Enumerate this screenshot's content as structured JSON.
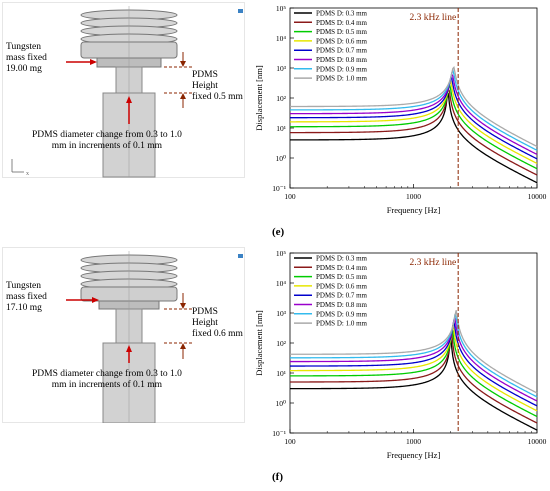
{
  "panels": [
    {
      "id": "e",
      "letter": "(e)",
      "cad": {
        "tungsten_label": "Tungsten\nmass fixed\n19.00 mg",
        "pdms_height_label": "PDMS Height\nfixed 0.5 mm",
        "diameter_label": "PDMS diameter change from 0.3 to 1.0\nmm in increments of 0.1 mm"
      }
    },
    {
      "id": "f",
      "letter": "(f)",
      "cad": {
        "tungsten_label": "Tungsten\nmass fixed\n17.10 mg",
        "pdms_height_label": "PDMS Height\nfixed 0.6 mm",
        "diameter_label": "PDMS diameter change from 0.3 to 1.0\nmm in increments of 0.1 mm"
      }
    }
  ],
  "colors": {
    "series": [
      "#000000",
      "#8b1a1a",
      "#00cc00",
      "#e6e600",
      "#0000cc",
      "#9900cc",
      "#33bbee",
      "#aaaaaa"
    ],
    "marker_line": "#8b2500",
    "cad_body": "#c8c8c8",
    "arrow": "#cc0000"
  },
  "chart_data": [
    {
      "type": "line",
      "panel": "e",
      "xlabel": "Frequency [Hz]",
      "ylabel": "Displacement [nm]",
      "x_scale": "log",
      "y_scale": "log",
      "xlim": [
        100,
        10000
      ],
      "ylim_exp": [
        -1,
        5
      ],
      "x_ticks": [
        "100",
        "1000",
        "10000"
      ],
      "y_ticks": [
        "10⁻¹",
        "10⁰",
        "10¹",
        "10²",
        "10³",
        "10⁴",
        "10⁵"
      ],
      "marker": {
        "x": 2300,
        "label": "2.3 kHz line"
      },
      "legend_position": "top-left",
      "series": [
        {
          "name": "PDMS D: 0.3 mm",
          "low_freq": 4,
          "resonance_hz": 1900,
          "peak": 170
        },
        {
          "name": "PDMS D: 0.4 mm",
          "low_freq": 7,
          "resonance_hz": 1930,
          "peak": 220
        },
        {
          "name": "PDMS D: 0.5 mm",
          "low_freq": 11,
          "resonance_hz": 1960,
          "peak": 290
        },
        {
          "name": "PDMS D: 0.6 mm",
          "low_freq": 16,
          "resonance_hz": 1990,
          "peak": 380
        },
        {
          "name": "PDMS D: 0.7 mm",
          "low_freq": 22,
          "resonance_hz": 2020,
          "peak": 500
        },
        {
          "name": "PDMS D: 0.8 mm",
          "low_freq": 30,
          "resonance_hz": 2050,
          "peak": 650
        },
        {
          "name": "PDMS D: 0.9 mm",
          "low_freq": 40,
          "resonance_hz": 2080,
          "peak": 850
        },
        {
          "name": "PDMS D: 1.0 mm",
          "low_freq": 52,
          "resonance_hz": 2110,
          "peak": 1100
        }
      ]
    },
    {
      "type": "line",
      "panel": "f",
      "xlabel": "Frequency [Hz]",
      "ylabel": "Displacement [nm]",
      "x_scale": "log",
      "y_scale": "log",
      "xlim": [
        100,
        10000
      ],
      "ylim_exp": [
        -1,
        5
      ],
      "x_ticks": [
        "100",
        "1000",
        "10000"
      ],
      "y_ticks": [
        "10⁻¹",
        "10⁰",
        "10¹",
        "10²",
        "10³",
        "10⁴",
        "10⁵"
      ],
      "marker": {
        "x": 2300,
        "label": "2.3 kHz line"
      },
      "legend_position": "top-left",
      "series": [
        {
          "name": "PDMS D: 0.3 mm",
          "low_freq": 3,
          "resonance_hz": 2000,
          "peak": 190
        },
        {
          "name": "PDMS D: 0.4 mm",
          "low_freq": 5,
          "resonance_hz": 2030,
          "peak": 250
        },
        {
          "name": "PDMS D: 0.5 mm",
          "low_freq": 8,
          "resonance_hz": 2060,
          "peak": 330
        },
        {
          "name": "PDMS D: 0.6 mm",
          "low_freq": 12,
          "resonance_hz": 2090,
          "peak": 430
        },
        {
          "name": "PDMS D: 0.7 mm",
          "low_freq": 17,
          "resonance_hz": 2120,
          "peak": 560
        },
        {
          "name": "PDMS D: 0.8 mm",
          "low_freq": 24,
          "resonance_hz": 2150,
          "peak": 730
        },
        {
          "name": "PDMS D: 0.9 mm",
          "low_freq": 32,
          "resonance_hz": 2180,
          "peak": 950
        },
        {
          "name": "PDMS D: 1.0 mm",
          "low_freq": 42,
          "resonance_hz": 2210,
          "peak": 1250
        }
      ]
    }
  ]
}
